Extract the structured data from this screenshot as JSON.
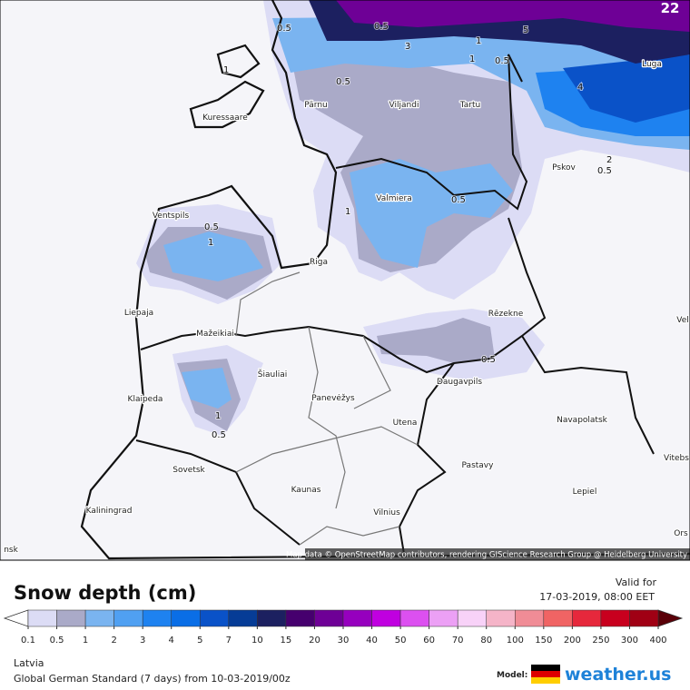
{
  "map": {
    "corner_label": "22",
    "attribution": "Map data © OpenStreetMap contributors, rendering GIScience Research Group @ Heidelberg University",
    "cities": [
      "Kuressaare",
      "Pärnu",
      "Viljandi",
      "Tartu",
      "Luga",
      "Pskov",
      "Ventspils",
      "Valmiera",
      "Riga",
      "Liepaja",
      "Rēzekne",
      "Mažeikiai",
      "Šiauliai",
      "Klaipeda",
      "Panevėžys",
      "Daugavpils",
      "Utena",
      "Navapolatsk",
      "Vitebs",
      "Sovetsk",
      "Kaunas",
      "Pastavy",
      "Lepiel",
      "Kaliningrad",
      "Vilnius",
      "nsk",
      "Ors",
      "Vel"
    ],
    "contour_labels": [
      "0.5",
      "0.5",
      "1",
      "0.5",
      "1",
      "1",
      "0.5",
      "4",
      "2",
      "0.5",
      "0.5",
      "1",
      "0.5",
      "1",
      "0.5",
      "0.5",
      "3",
      "1",
      "5"
    ]
  },
  "legend": {
    "title": "Snow depth (cm)",
    "ticks": [
      0.1,
      0.5,
      1,
      2,
      3,
      4,
      5,
      7,
      10,
      15,
      20,
      30,
      40,
      50,
      60,
      70,
      80,
      100,
      150,
      200,
      250,
      300,
      400
    ],
    "under_color": "#ffffff",
    "over_color": "#5a0008",
    "colors": [
      "#dcdcf5",
      "#aaaac8",
      "#7ab4f0",
      "#50a0f2",
      "#1e82f0",
      "#0a6ee6",
      "#0a52c8",
      "#063c96",
      "#1c2060",
      "#46006e",
      "#6e0096",
      "#9600be",
      "#c000e0",
      "#dc50f0",
      "#eca0f5",
      "#f8d2f8",
      "#f5b4c8",
      "#f08c96",
      "#f06464",
      "#e6283c",
      "#c8001e",
      "#a00014"
    ]
  },
  "footer": {
    "valid_label": "Valid for",
    "valid_time": "17-03-2019, 08:00 EET",
    "region": "Latvia",
    "model_run": "Global German Standard (7 days) from 10-03-2019/00z",
    "model_label": "Model:",
    "brand": "weather.us"
  }
}
